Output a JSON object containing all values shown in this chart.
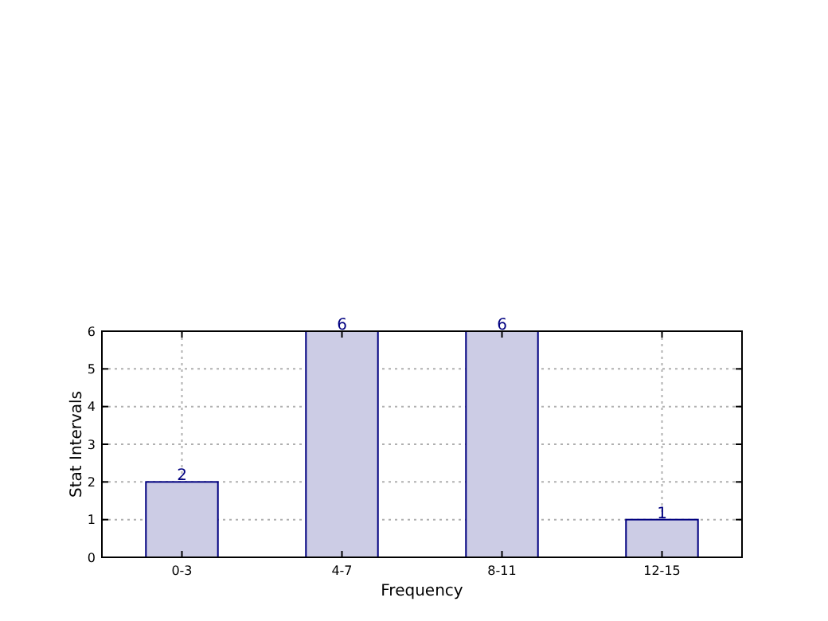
{
  "chart_data": {
    "type": "bar",
    "xlabel": "Frequency",
    "ylabel": "Stat Intervals",
    "categories": [
      "0-3",
      "4-7",
      "8-11",
      "12-15"
    ],
    "values": [
      2,
      6,
      6,
      1
    ],
    "color": "#ccccE5",
    "ylim": [
      0,
      6
    ],
    "yticks": [
      0,
      1,
      2,
      3,
      4,
      5,
      6
    ],
    "grid": true,
    "data_labels": true
  }
}
